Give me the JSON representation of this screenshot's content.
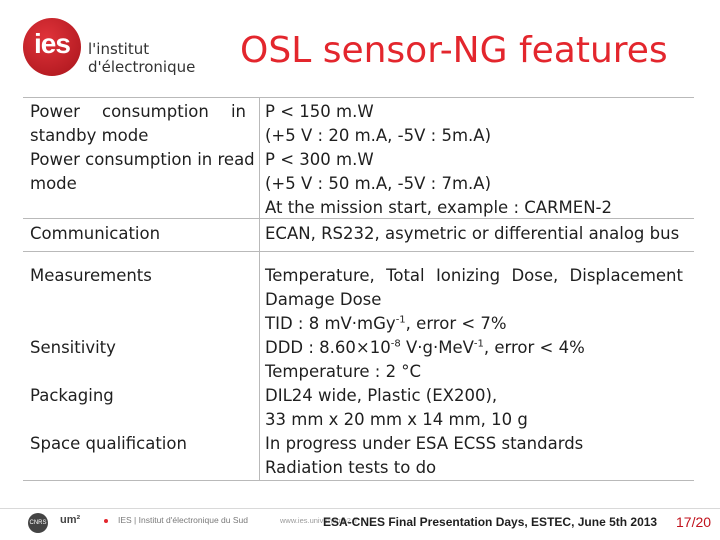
{
  "header": {
    "logo_mark": "ies",
    "logo_line1": "l'institut",
    "logo_line2": "d'électronique",
    "title": "OSL sensor-NG features"
  },
  "table": {
    "rows": [
      {
        "label_lines": [
          "Power consumption in standby mode"
        ],
        "value_lines": [
          "P < 150 m.W",
          "(+5 V : 20 m.A, -5V : 5m.A)"
        ]
      },
      {
        "label_lines": [
          "Power consumption in read",
          "mode"
        ],
        "value_lines": [
          "P < 300 m.W",
          "(+5 V : 50 m.A, -5V : 7m.A)",
          "At the mission start, example : CARMEN-2"
        ]
      },
      {
        "label_lines": [
          "Communication"
        ],
        "value_lines": [
          "ECAN, RS232, asymetric or differential analog bus"
        ]
      },
      {
        "label_lines": [
          "Measurements"
        ],
        "value_lines": [
          "Temperature, Total Ionizing Dose, Displacement",
          "Damage Dose"
        ]
      },
      {
        "label_lines": [
          "Sensitivity"
        ],
        "value_lines": [
          "TID : 8 mV·mGy-1, error < 7%",
          "DDD : 8.60×10-8 V·g·MeV-1, error < 4%",
          "Temperature : 2 °C"
        ]
      },
      {
        "label_lines": [
          "Packaging"
        ],
        "value_lines": [
          "DIL24 wide, Plastic (EX200),",
          "33 mm x 20 mm x 14 mm, 10 g"
        ]
      },
      {
        "label_lines": [
          "Space qualification"
        ],
        "value_lines": [
          "In progress under ESA ECSS standards",
          "Radiation tests to do"
        ]
      }
    ],
    "power_standby_word1": "Power",
    "power_standby_word2": "consumption",
    "power_standby_word3": "in",
    "power_standby_line2": "standby mode",
    "tid_prefix": "TID : 8 m",
    "tid_v": "V·m",
    "tid_gy": "Gy",
    "tid_exp": "-1",
    "tid_suffix": ", error < 7%",
    "ddd_prefix": "DDD : 8.60×10",
    "ddd_exp1": "-8",
    "ddd_mid": " V·g·MeV",
    "ddd_exp2": "-1",
    "ddd_suffix": ", error < 4%",
    "meas_w1": "Temperature,",
    "meas_w2": "Total",
    "meas_w3": "Ionizing",
    "meas_w4": "Dose,",
    "meas_w5": "Displacement"
  },
  "footer": {
    "logo1": "CNRS",
    "logo2": "um²",
    "institute": "IES | Institut d'électronique du Sud",
    "website": "www.ies.univ-montp2.fr",
    "event": "ESA-CNES Final Presentation Days, ESTEC, June 5th 2013",
    "page": "17/20"
  },
  "colors": {
    "accent_red": "#e3262d",
    "table_border": "#b9b9b9"
  }
}
